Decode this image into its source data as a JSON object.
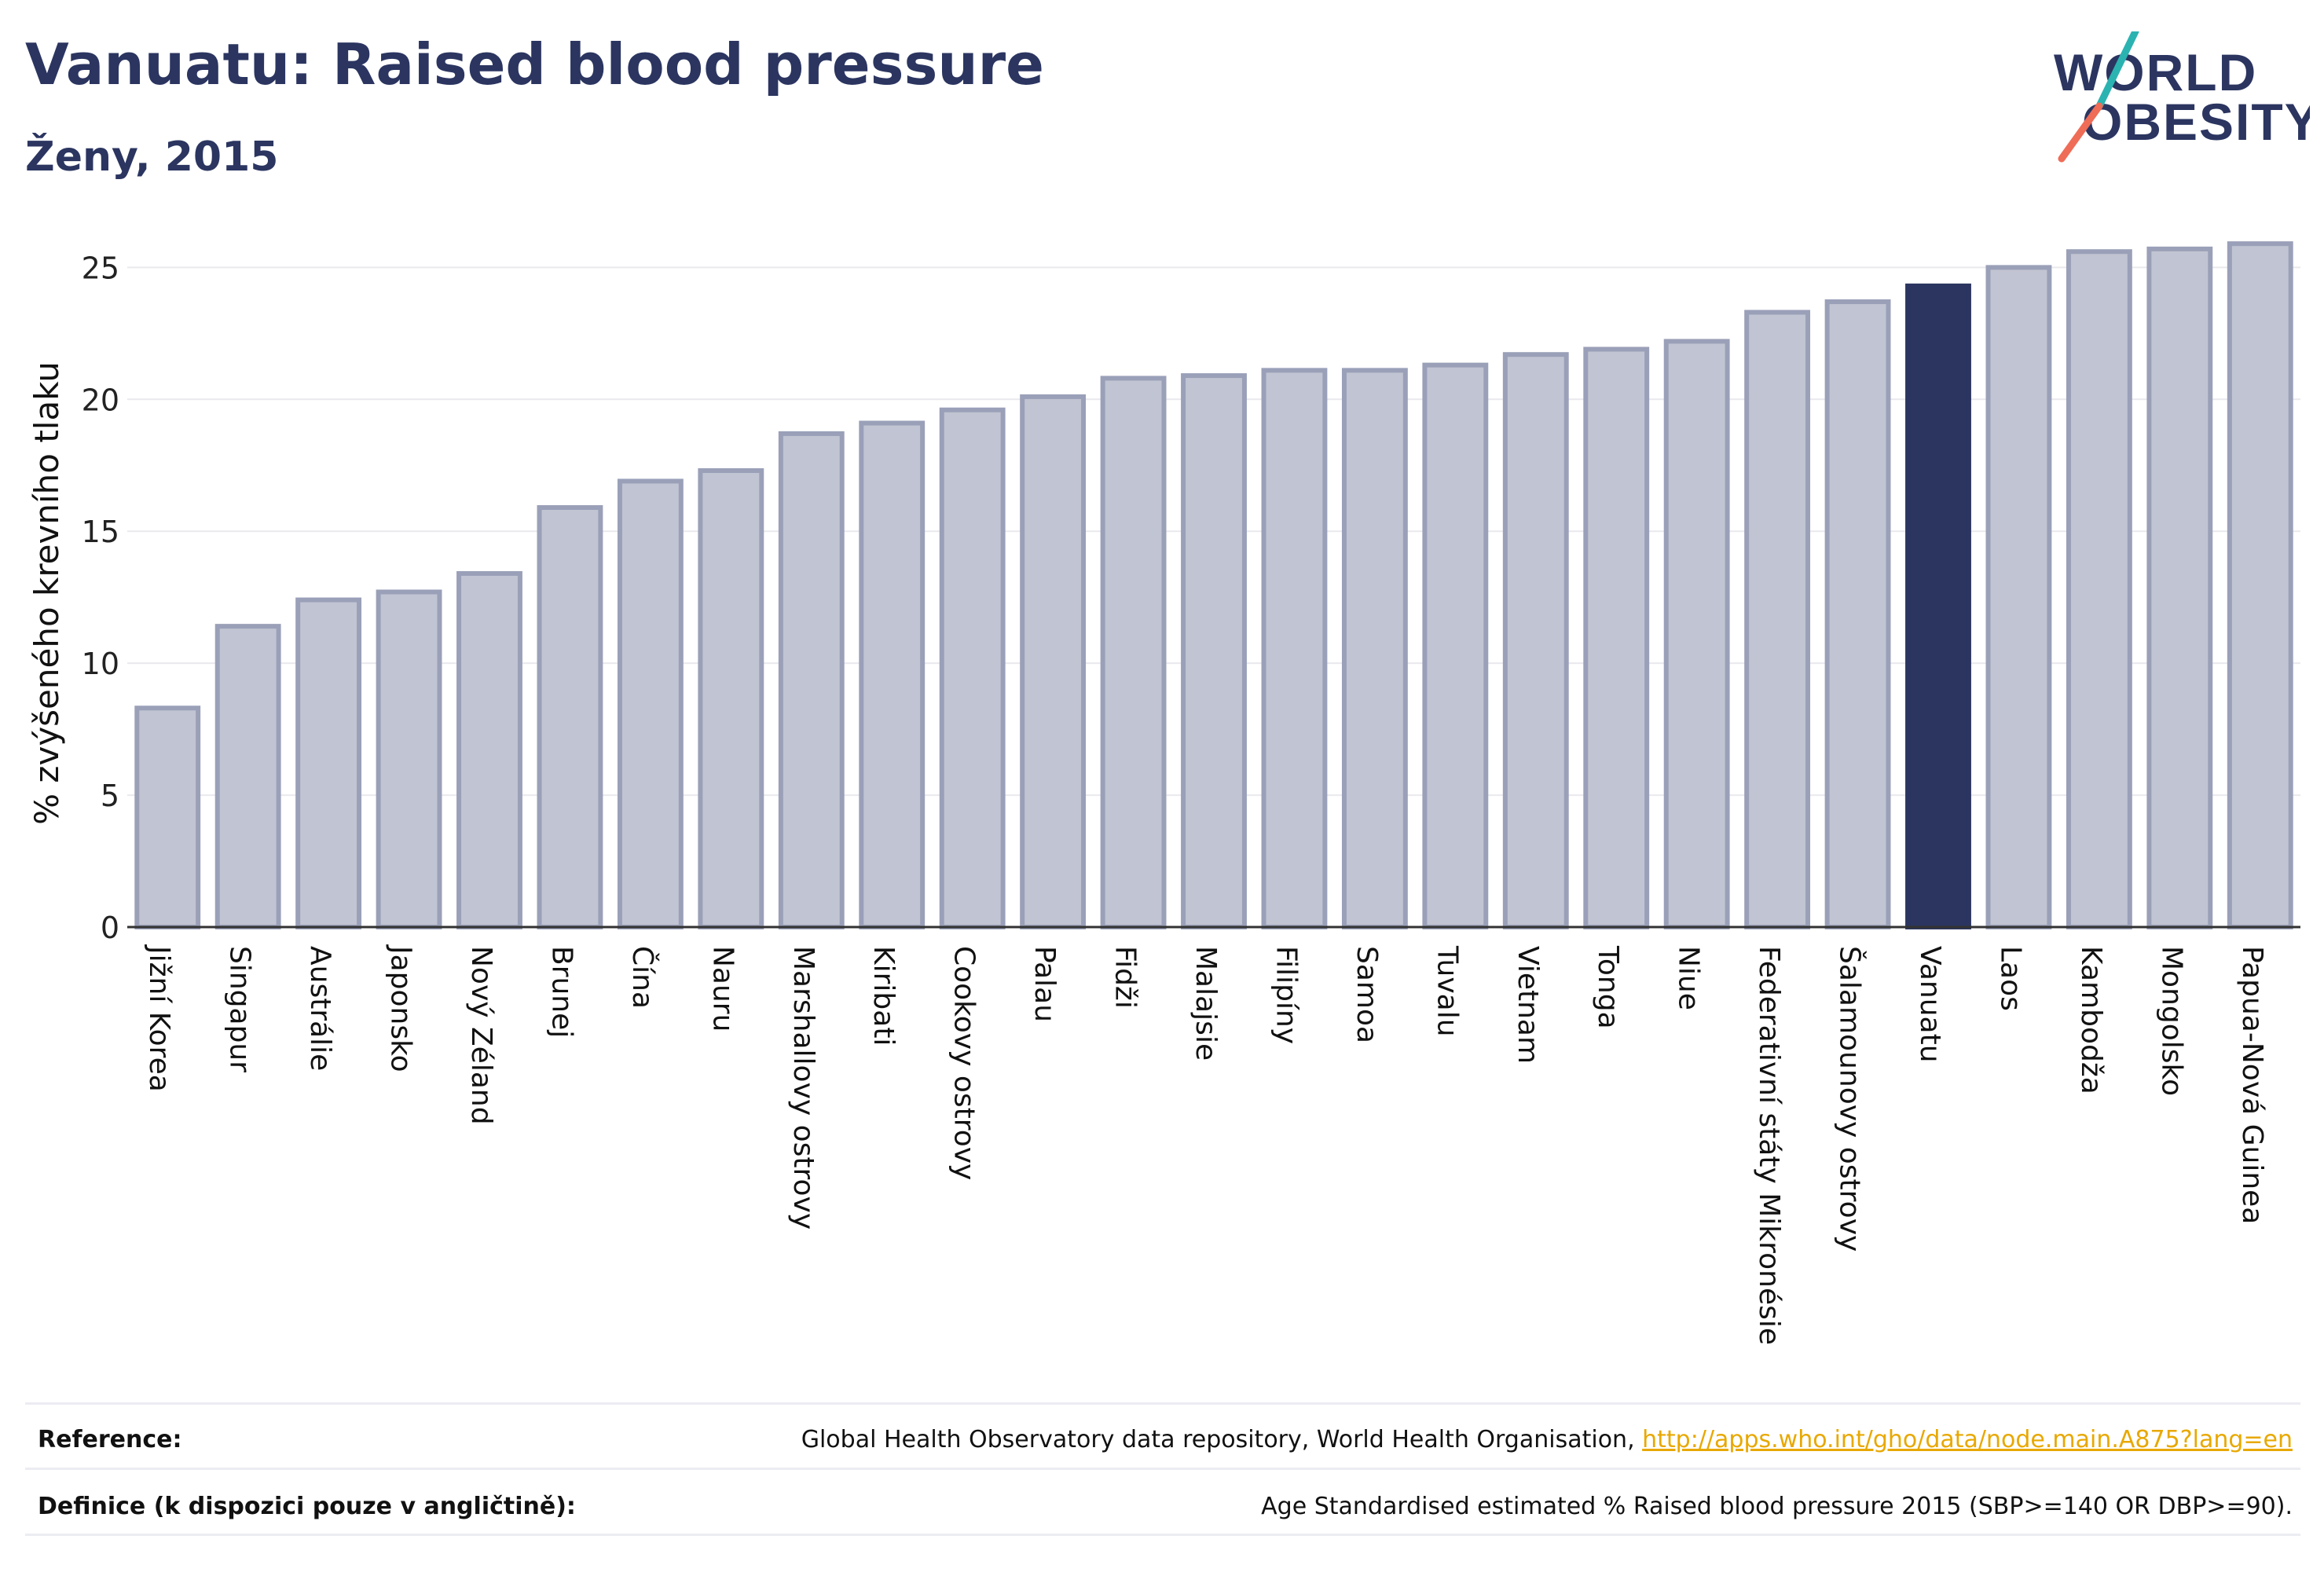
{
  "header": {
    "title": "Vanuatu: Raised blood pressure",
    "subtitle": "Ženy, 2015"
  },
  "logo": {
    "line1": "WORLD",
    "line2": "OBESITY"
  },
  "chart_data": {
    "type": "bar",
    "ylabel": "% zvýšeného krevního tlaku",
    "ylim": [
      0,
      26.5
    ],
    "yticks": [
      0,
      5,
      10,
      15,
      20,
      25
    ],
    "grid": true,
    "highlight": "Vanuatu",
    "colors": {
      "bar": "#c1c4d2",
      "bar_edge": "#9aa0b8",
      "highlight": "#2b3560",
      "grid": "#e9e9ee",
      "axis": "#333333"
    },
    "categories": [
      "Jižní Korea",
      "Singapur",
      "Austrálie",
      "Japonsko",
      "Nový Zéland",
      "Brunej",
      "Čína",
      "Nauru",
      "Marshallovy ostrovy",
      "Kiribati",
      "Cookovy ostrovy",
      "Palau",
      "Fidži",
      "Malajsie",
      "Filipíny",
      "Samoa",
      "Tuvalu",
      "Vietnam",
      "Tonga",
      "Niue",
      "Federativní státy Mikronésie",
      "Šalamounovy ostrovy",
      "Vanuatu",
      "Laos",
      "Kambodža",
      "Mongolsko",
      "Papua-Nová Guinea"
    ],
    "values": [
      8.3,
      11.4,
      12.4,
      12.7,
      13.4,
      15.9,
      16.9,
      17.3,
      18.7,
      19.1,
      19.6,
      20.1,
      20.8,
      20.9,
      21.1,
      21.1,
      21.3,
      21.7,
      21.9,
      22.2,
      23.3,
      23.7,
      24.3,
      25.0,
      25.6,
      25.7,
      25.9
    ]
  },
  "footer": {
    "reference_label": "Reference:",
    "reference_text": "Global Health Observatory data repository, World Health Organisation, ",
    "reference_link": "http://apps.who.int/gho/data/node.main.A875?lang=en",
    "definition_label": "Definice (k dispozici pouze v angličtině):",
    "definition_text": "Age Standardised estimated % Raised blood pressure 2015 (SBP>=140 OR DBP>=90)."
  }
}
